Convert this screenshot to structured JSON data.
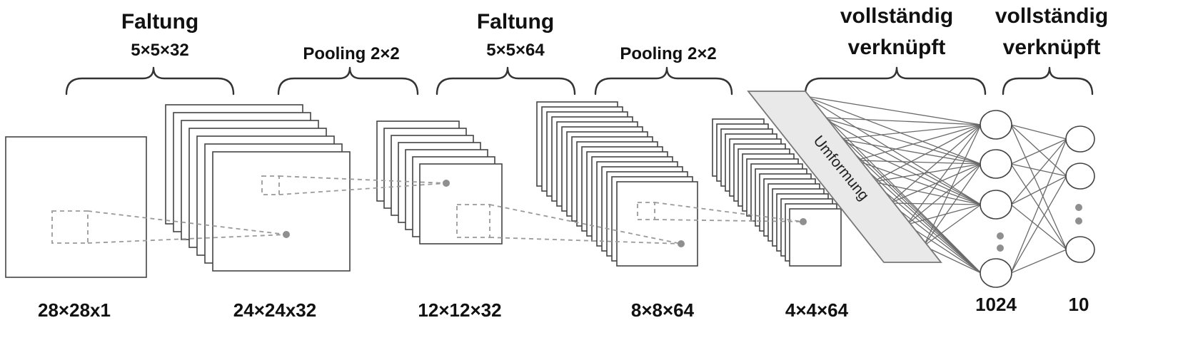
{
  "labels": {
    "conv1_title": "Faltung",
    "conv1_dims": "5×5×32",
    "pool1_title": "Pooling 2×2",
    "conv2_title": "Faltung",
    "conv2_dims": "5×5×64",
    "pool2_title": "Pooling 2×2",
    "fc1_line1": "vollständig",
    "fc1_line2": "verknüpft",
    "fc2_line1": "vollständig",
    "fc2_line2": "verknüpft",
    "reshape": "Umformung"
  },
  "dimensions": {
    "input": "28×28x1",
    "conv1": "24×24x32",
    "pool1": "12×12×32",
    "conv2": "8×8×64",
    "pool2": "4×4×64",
    "fc1": "1024",
    "fc2": "10"
  }
}
